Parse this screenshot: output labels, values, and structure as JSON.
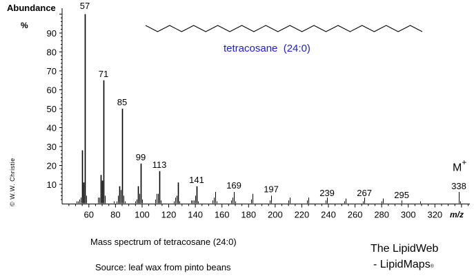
{
  "header": {
    "ylabel_title": "Abundance",
    "ylabel_unit": "%",
    "copyright": "© W.W. Christie",
    "compound_label": "tetracosane  (24:0)",
    "compound_color": "#1a1ae6",
    "molecular_ion_label": "M",
    "molecular_ion_sup": "+",
    "xlabel": "m/z"
  },
  "footer": {
    "caption": "Mass spectrum of tetracosane (24:0)",
    "source": "Source: leaf wax from pinto beans",
    "brand_line1": "The LipidWeb",
    "brand_line2": "- LipidMaps",
    "brand_mark": "®"
  },
  "chart_data": {
    "type": "bar",
    "title": "Mass spectrum of tetracosane (24:0)",
    "subtitle": "Source: leaf wax from pinto beans",
    "xlabel": "m/z",
    "ylabel": "Abundance %",
    "xlim": [
      41,
      345
    ],
    "ylim": [
      0,
      100
    ],
    "x_ticks": [
      60,
      80,
      100,
      120,
      140,
      160,
      180,
      200,
      220,
      240,
      260,
      280,
      300,
      320
    ],
    "y_ticks": [
      10,
      20,
      30,
      40,
      50,
      60,
      70,
      80,
      90
    ],
    "grid": false,
    "legend": null,
    "annotations": [
      "tetracosane (24:0)",
      "M+ at 338",
      "© W.W. Christie"
    ],
    "labeled_peaks": [
      57,
      71,
      85,
      99,
      113,
      141,
      169,
      197,
      239,
      267,
      295,
      338
    ],
    "peaks": [
      {
        "mz": 51,
        "abundance": 1
      },
      {
        "mz": 52,
        "abundance": 1
      },
      {
        "mz": 53,
        "abundance": 2
      },
      {
        "mz": 54,
        "abundance": 3
      },
      {
        "mz": 55,
        "abundance": 28
      },
      {
        "mz": 56,
        "abundance": 11
      },
      {
        "mz": 57,
        "abundance": 100
      },
      {
        "mz": 58,
        "abundance": 4
      },
      {
        "mz": 67,
        "abundance": 3
      },
      {
        "mz": 68,
        "abundance": 3
      },
      {
        "mz": 69,
        "abundance": 15
      },
      {
        "mz": 70,
        "abundance": 12
      },
      {
        "mz": 71,
        "abundance": 65
      },
      {
        "mz": 72,
        "abundance": 4
      },
      {
        "mz": 79,
        "abundance": 1
      },
      {
        "mz": 81,
        "abundance": 1
      },
      {
        "mz": 82,
        "abundance": 4
      },
      {
        "mz": 83,
        "abundance": 9
      },
      {
        "mz": 84,
        "abundance": 7
      },
      {
        "mz": 85,
        "abundance": 50
      },
      {
        "mz": 86,
        "abundance": 4
      },
      {
        "mz": 87,
        "abundance": 1
      },
      {
        "mz": 95,
        "abundance": 1
      },
      {
        "mz": 96,
        "abundance": 2
      },
      {
        "mz": 97,
        "abundance": 9
      },
      {
        "mz": 98,
        "abundance": 5
      },
      {
        "mz": 99,
        "abundance": 21
      },
      {
        "mz": 100,
        "abundance": 2
      },
      {
        "mz": 110,
        "abundance": 2
      },
      {
        "mz": 111,
        "abundance": 5
      },
      {
        "mz": 112,
        "abundance": 5
      },
      {
        "mz": 113,
        "abundance": 17
      },
      {
        "mz": 114,
        "abundance": 1.5
      },
      {
        "mz": 124,
        "abundance": 1
      },
      {
        "mz": 125,
        "abundance": 3
      },
      {
        "mz": 126,
        "abundance": 4
      },
      {
        "mz": 127,
        "abundance": 11
      },
      {
        "mz": 128,
        "abundance": 1
      },
      {
        "mz": 137,
        "abundance": 1.5
      },
      {
        "mz": 138,
        "abundance": 1.5
      },
      {
        "mz": 139,
        "abundance": 1.5
      },
      {
        "mz": 140,
        "abundance": 4
      },
      {
        "mz": 141,
        "abundance": 9
      },
      {
        "mz": 142,
        "abundance": 1
      },
      {
        "mz": 153,
        "abundance": 1.5
      },
      {
        "mz": 154,
        "abundance": 3
      },
      {
        "mz": 155,
        "abundance": 6
      },
      {
        "mz": 156,
        "abundance": 1
      },
      {
        "mz": 167,
        "abundance": 1.5
      },
      {
        "mz": 168,
        "abundance": 3
      },
      {
        "mz": 169,
        "abundance": 6
      },
      {
        "mz": 170,
        "abundance": 1
      },
      {
        "mz": 182,
        "abundance": 2
      },
      {
        "mz": 183,
        "abundance": 5
      },
      {
        "mz": 196,
        "abundance": 1.5
      },
      {
        "mz": 197,
        "abundance": 4
      },
      {
        "mz": 210,
        "abundance": 1.5
      },
      {
        "mz": 211,
        "abundance": 3
      },
      {
        "mz": 224,
        "abundance": 1.5
      },
      {
        "mz": 225,
        "abundance": 3
      },
      {
        "mz": 238,
        "abundance": 1.5
      },
      {
        "mz": 239,
        "abundance": 3
      },
      {
        "mz": 252,
        "abundance": 1
      },
      {
        "mz": 253,
        "abundance": 2.5
      },
      {
        "mz": 266,
        "abundance": 1
      },
      {
        "mz": 267,
        "abundance": 3
      },
      {
        "mz": 280,
        "abundance": 1
      },
      {
        "mz": 281,
        "abundance": 2.5
      },
      {
        "mz": 295,
        "abundance": 1.5
      },
      {
        "mz": 309,
        "abundance": 1
      },
      {
        "mz": 338,
        "abundance": 6
      },
      {
        "mz": 339,
        "abundance": 1
      }
    ]
  }
}
